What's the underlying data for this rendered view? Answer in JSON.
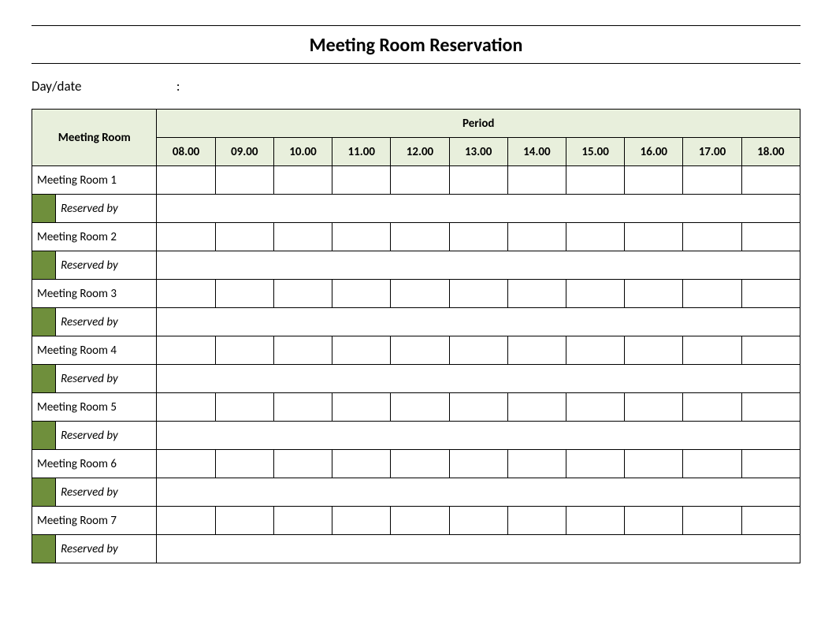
{
  "title": "Meeting Room Reservation",
  "daydate_label": "Day/date",
  "daydate_colon": ":",
  "table": {
    "type": "table",
    "header_bg_color": "#e8efdc",
    "indicator_color": "#6f8f3c",
    "border_color": "#000000",
    "room_header": "Meeting Room",
    "period_header": "Period",
    "time_columns": [
      "08.00",
      "09.00",
      "10.00",
      "11.00",
      "12.00",
      "13.00",
      "14.00",
      "15.00",
      "16.00",
      "17.00",
      "18.00"
    ],
    "rooms": [
      {
        "name": "Meeting Room 1",
        "reserved_by_label": "Reserved by"
      },
      {
        "name": "Meeting Room 2",
        "reserved_by_label": "Reserved by"
      },
      {
        "name": "Meeting Room 3",
        "reserved_by_label": "Reserved by"
      },
      {
        "name": "Meeting Room 4",
        "reserved_by_label": "Reserved by"
      },
      {
        "name": "Meeting Room 5",
        "reserved_by_label": "Reserved by"
      },
      {
        "name": "Meeting Room 6",
        "reserved_by_label": "Reserved by"
      },
      {
        "name": "Meeting Room 7",
        "reserved_by_label": "Reserved by"
      }
    ]
  }
}
